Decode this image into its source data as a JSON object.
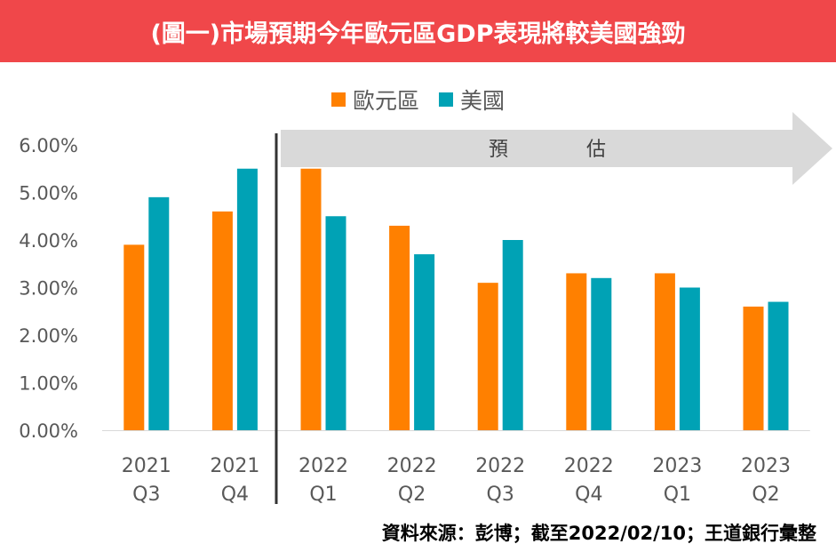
{
  "title": "(圖一)市場預期今年歐元區GDP表現將較美國強勁",
  "source": "資料來源：彭博；截至2022/02/10；王道銀行彙整",
  "forecast_label": [
    "預",
    "估"
  ],
  "colors": {
    "banner": "#f0474a",
    "euro": "#ff8000",
    "us": "#00a2b5",
    "arrow": "#d9d9d9"
  },
  "chart_data": {
    "type": "bar",
    "title": "",
    "xlabel": "",
    "ylabel": "",
    "ylim": [
      0,
      6
    ],
    "y_ticks": [
      "0.00%",
      "1.00%",
      "2.00%",
      "3.00%",
      "4.00%",
      "5.00%",
      "6.00%"
    ],
    "categories": [
      [
        "2021",
        "Q3"
      ],
      [
        "2021",
        "Q4"
      ],
      [
        "2022",
        "Q1"
      ],
      [
        "2022",
        "Q2"
      ],
      [
        "2022",
        "Q3"
      ],
      [
        "2022",
        "Q4"
      ],
      [
        "2023",
        "Q1"
      ],
      [
        "2023",
        "Q2"
      ]
    ],
    "series": [
      {
        "name": "歐元區",
        "color": "#ff8000",
        "values": [
          3.9,
          4.6,
          5.5,
          4.3,
          3.1,
          3.3,
          3.3,
          2.6
        ]
      },
      {
        "name": "美國",
        "color": "#00a2b5",
        "values": [
          4.9,
          5.5,
          4.5,
          3.7,
          4.0,
          3.2,
          3.0,
          2.7
        ]
      }
    ],
    "legend": "top-center",
    "grid": false,
    "forecast_starts_at": "2022 Q1"
  }
}
